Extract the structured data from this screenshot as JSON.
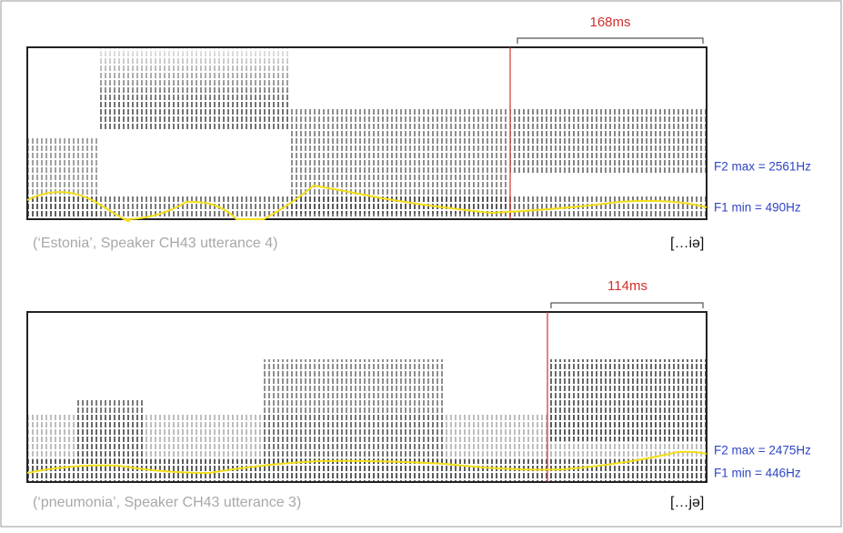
{
  "panels": [
    {
      "duration": "168ms",
      "f2": "F2 max = 2561Hz",
      "f1": "F1 min = 490Hz",
      "caption": "(‘Estonia’, Speaker CH43 utterance 4)",
      "transcription": "[…iə]"
    },
    {
      "duration": "114ms",
      "f2": "F2 max = 2475Hz",
      "f1": "F1 min = 446Hz",
      "caption": "(‘pneumonia’, Speaker CH43 utterance 3)",
      "transcription": "[…jə]"
    }
  ]
}
